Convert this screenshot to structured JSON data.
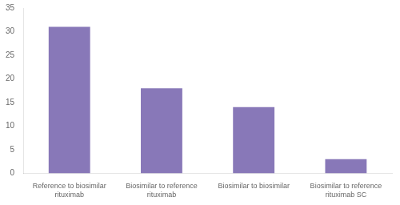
{
  "chart_data": {
    "type": "bar",
    "categories": [
      "Reference to biosimilar\nrituximab",
      "Biosimilar to reference\nrituximab",
      "Biosimilar to biosimilar",
      "Biosimilar to reference\nrituximab SC"
    ],
    "values": [
      31,
      18,
      14,
      3
    ],
    "color": "#8878b8",
    "ylim": [
      0,
      35
    ],
    "yticks": [
      0,
      5,
      10,
      15,
      20,
      25,
      30,
      35
    ],
    "grid": false
  }
}
